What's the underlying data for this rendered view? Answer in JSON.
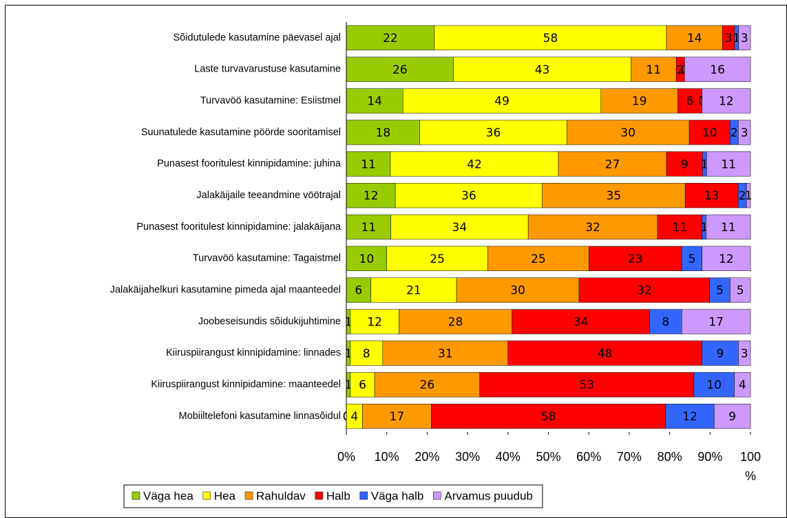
{
  "chart_data": {
    "type": "bar",
    "orientation": "horizontal",
    "stacking": "percent",
    "categories": [
      "Sõidutulede kasutamine päevasel ajal",
      "Laste turvavarustuse kasutamine",
      "Turvavöö kasutamine: Esiistmel",
      "Suunatulede kasutamine pöörde sooritamisel",
      "Punasest fooritulest kinnipidamine: juhina",
      "Jalakäijaile teeandmine vöötrajal",
      "Punasest fooritulest kinnipidamine: jalakäijana",
      "Turvavöö kasutamine: Tagaistmel",
      "Jalakäijahelkuri kasutamine pimeda ajal maanteedel",
      "Joobeseisundis sõidukijuhtimine",
      "Kiiruspiirangust kinnipidamine: linnades",
      "Kiiruspiirangust kinnipidamine: maanteedel",
      "Mobiiltelefoni kasutamine linnasõidul"
    ],
    "series": [
      {
        "name": "Väga hea",
        "color": "#99cc00",
        "values": [
          22,
          26,
          14,
          18,
          11,
          12,
          11,
          10,
          6,
          1,
          1,
          1,
          0
        ]
      },
      {
        "name": "Hea",
        "color": "#ffff00",
        "values": [
          58,
          43,
          49,
          36,
          42,
          36,
          34,
          25,
          21,
          12,
          8,
          6,
          4
        ]
      },
      {
        "name": "Rahuldav",
        "color": "#ff9900",
        "values": [
          14,
          11,
          19,
          30,
          27,
          35,
          32,
          25,
          30,
          28,
          31,
          26,
          17
        ]
      },
      {
        "name": "Halb",
        "color": "#ff0000",
        "values": [
          3,
          2,
          6,
          10,
          9,
          13,
          11,
          23,
          32,
          34,
          48,
          53,
          58
        ]
      },
      {
        "name": "Väga halb",
        "color": "#3366ff",
        "values": [
          1,
          0,
          0,
          2,
          1,
          2,
          1,
          5,
          5,
          8,
          9,
          10,
          12
        ]
      },
      {
        "name": "Arvamus puudub",
        "color": "#cc99ff",
        "values": [
          3,
          16,
          12,
          3,
          11,
          1,
          11,
          12,
          5,
          17,
          3,
          4,
          9
        ]
      }
    ],
    "xlim": [
      0,
      100
    ],
    "xticks": [
      {
        "value": 0,
        "label": "0%"
      },
      {
        "value": 10,
        "label": "10%"
      },
      {
        "value": 20,
        "label": "20%"
      },
      {
        "value": 30,
        "label": "30%"
      },
      {
        "value": 40,
        "label": "40%"
      },
      {
        "value": 50,
        "label": "50%"
      },
      {
        "value": 60,
        "label": "60%"
      },
      {
        "value": 70,
        "label": "70%"
      },
      {
        "value": 80,
        "label": "80%"
      },
      {
        "value": 90,
        "label": "90%"
      },
      {
        "value": 100,
        "label": "100 %"
      }
    ],
    "legend": "bottom"
  }
}
